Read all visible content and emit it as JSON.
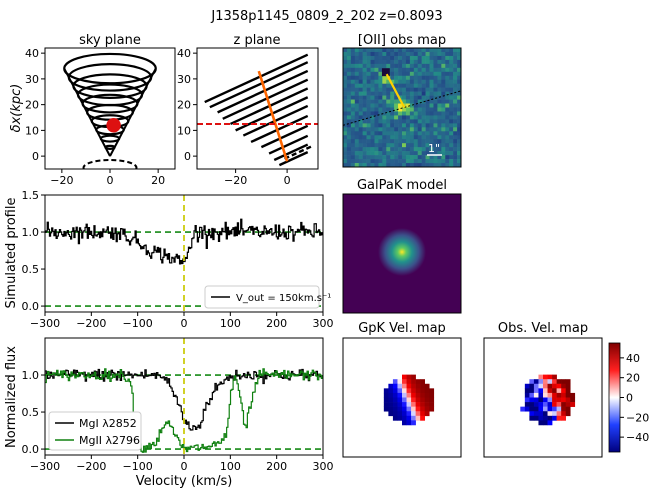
{
  "figure_title": "J1358p1145_0809_2_202 z=0.8093",
  "colors": {
    "data_black": "#000000",
    "data_green": "#108010",
    "ref_green": "#168a16",
    "marker_red": "#dd1111",
    "dashed_red": "#dd1111",
    "orange_line": "#ff6600",
    "yellow_line": "#cccc11",
    "viridis_dark": "#440154",
    "obsmap_bg": "#2a5b8c"
  },
  "chart_data": [
    {
      "type": "line",
      "name": "sky-plane",
      "title": "sky plane",
      "ylabel": "δx(kpc)",
      "xlim": [
        -27,
        27
      ],
      "ylim": [
        -5,
        42
      ],
      "xticks": [
        -20,
        0,
        20
      ],
      "yticks": [
        0,
        10,
        20,
        30,
        40
      ],
      "cone": {
        "apex": [
          0,
          0
        ],
        "top_center": [
          0,
          34
        ],
        "top_radius": 19,
        "n_rings": 10
      },
      "dashed_ellipse": {
        "center": [
          0,
          -4.5
        ],
        "rx": 11,
        "ry": 3
      },
      "marker": {
        "x": 1.5,
        "y": 12,
        "r": 3
      }
    },
    {
      "type": "line",
      "name": "z-plane",
      "title": "z plane",
      "xlim": [
        -35,
        12
      ],
      "ylim": [
        -5,
        42
      ],
      "xticks": [
        -20,
        0
      ],
      "yticks": [
        0,
        10,
        20,
        30,
        40
      ],
      "lines_from": [
        [
          -32,
          21
        ],
        [
          -30,
          19
        ],
        [
          -27,
          17
        ],
        [
          -25,
          14.5
        ],
        [
          -22,
          12.5
        ],
        [
          -20,
          10
        ],
        [
          -17,
          8
        ],
        [
          -14,
          5.5
        ],
        [
          -10,
          3.5
        ],
        [
          -7,
          1
        ],
        [
          -5,
          -1.5
        ],
        [
          -3,
          -3.5
        ]
      ],
      "lines_slope": 0.46,
      "lines_to_x": 8,
      "orange_line": [
        [
          -11,
          33
        ],
        [
          0,
          -2
        ]
      ],
      "red_dashed_y": 12.5
    },
    {
      "type": "heatmap",
      "name": "oii-obs-map",
      "title": "[OII] obs map",
      "scale_label": "1\""
    },
    {
      "type": "heatmap",
      "name": "galpak-model",
      "title": "GalPaK model"
    },
    {
      "type": "line",
      "name": "simulated-profile",
      "ylabel": "Simulated profile",
      "xlim": [
        -300,
        300
      ],
      "ylim": [
        -0.08,
        1.5
      ],
      "xticks": [
        -300,
        -200,
        -100,
        0,
        100,
        200,
        300
      ],
      "yticks": [
        0.0,
        0.5,
        1.0,
        1.5
      ],
      "ref_lines": [
        0.0,
        1.0
      ],
      "vline_x": 0,
      "legend": {
        "label": "V_out = 150km.s⁻¹",
        "loc": "lower-right"
      },
      "profile": {
        "x": [
          -300,
          -150,
          -120,
          -90,
          -60,
          -30,
          -10,
          0,
          10,
          20,
          300
        ],
        "y": [
          1.0,
          1.0,
          0.94,
          0.82,
          0.72,
          0.66,
          0.6,
          0.6,
          0.74,
          1.0,
          1.0
        ],
        "noise": 0.055
      }
    },
    {
      "type": "line",
      "name": "normalized-flux",
      "xlabel": "Velocity (km/s)",
      "ylabel": "Normalized flux",
      "xlim": [
        -300,
        300
      ],
      "ylim": [
        -0.08,
        1.5
      ],
      "xticks": [
        -300,
        -200,
        -100,
        0,
        100,
        200,
        300
      ],
      "yticks": [
        0.0,
        0.5,
        1.0
      ],
      "ref_lines": [
        0.0,
        1.0
      ],
      "vline_x": 0,
      "legend": {
        "entries": [
          "MgI λ2852",
          "MgII λ2796"
        ],
        "loc": "lower-left"
      },
      "series": [
        {
          "name": "MgI λ2852",
          "x": [
            -300,
            -60,
            -40,
            -20,
            0,
            15,
            30,
            45,
            60,
            80,
            110,
            300
          ],
          "y": [
            1.0,
            1.0,
            0.95,
            0.72,
            0.38,
            0.28,
            0.3,
            0.55,
            0.75,
            0.9,
            1.0,
            1.0
          ],
          "noise": 0.04
        },
        {
          "name": "MgII λ2796",
          "x": [
            -300,
            -140,
            -125,
            -115,
            -105,
            -95,
            -80,
            -60,
            -40,
            -20,
            -5,
            10,
            30,
            55,
            75,
            90,
            100,
            110,
            120,
            130,
            145,
            160,
            175,
            300
          ],
          "y": [
            1.0,
            1.0,
            0.98,
            0.9,
            0.2,
            0.02,
            0.03,
            0.1,
            0.4,
            0.18,
            0.02,
            0.0,
            0.02,
            0.04,
            0.08,
            0.2,
            0.7,
            1.02,
            0.7,
            0.25,
            0.65,
            1.0,
            1.0,
            1.0
          ],
          "noise": 0.035
        }
      ]
    },
    {
      "type": "heatmap",
      "name": "gpk-vel-map",
      "title": "GpK Vel. map"
    },
    {
      "type": "heatmap",
      "name": "obs-vel-map",
      "title": "Obs. Vel. map",
      "colorbar_ticks": [
        40,
        20,
        0,
        -20,
        -40
      ],
      "colorbar_range": [
        -55,
        55
      ]
    }
  ]
}
